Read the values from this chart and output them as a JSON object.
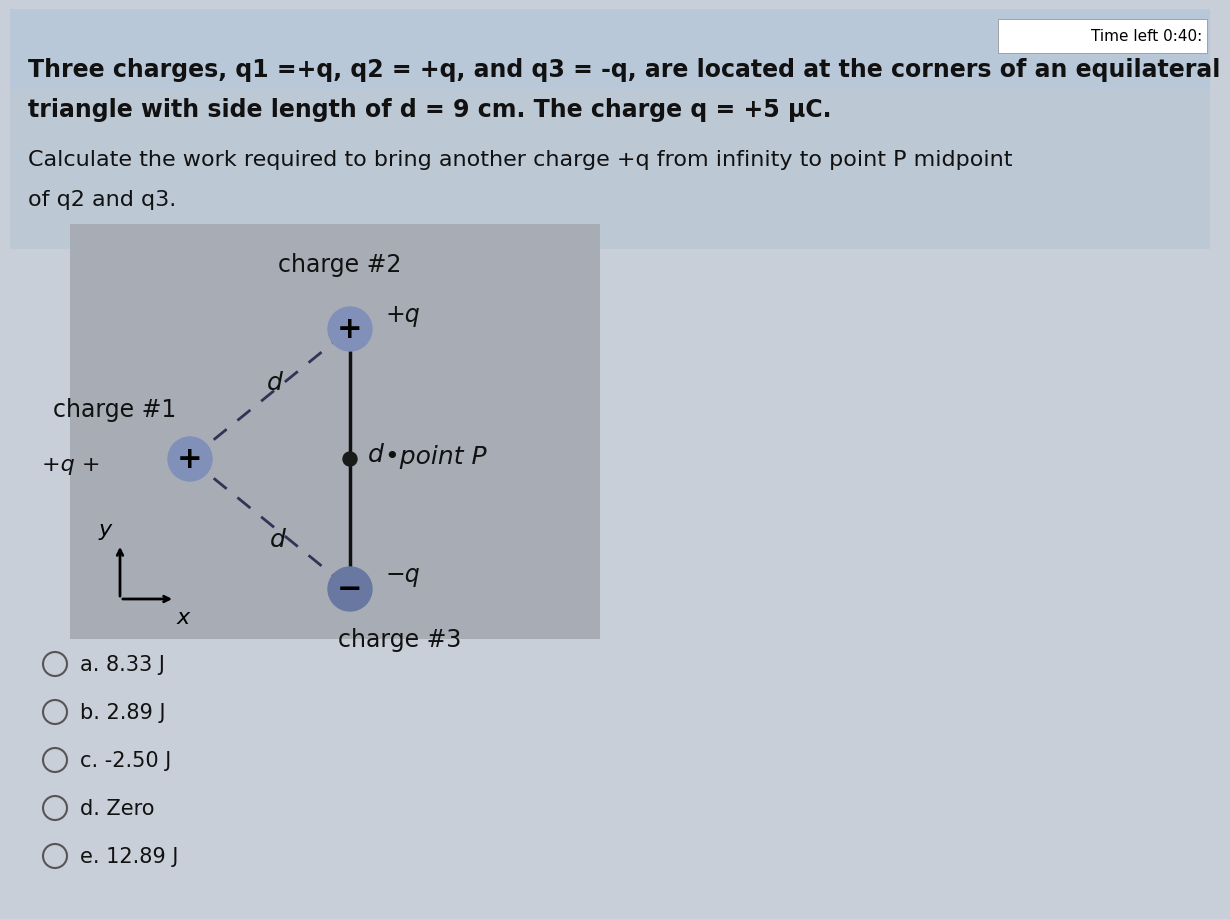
{
  "bg_color_top": "#c8d8e8",
  "bg_color_main": "#c8cfd8",
  "timer_text": "Time left 0:40:",
  "title_line1": "Three charges, q1 =+q, q2 = +q, and q3 = -q, are located at the corners of an equilateral",
  "title_line2": "triangle with side length of d = 9 cm. The charge q = +5 μC.",
  "q_line1": "Calculate the work required to bring another charge +q from infinity to point P midpoint",
  "q_line2": "of q2 and q3.",
  "diagram_bg": "#a8adb5",
  "charge2_label": "charge #2",
  "charge1_label": "charge #1",
  "charge3_label": "charge #3",
  "choices": [
    "a. 8.33 J",
    "b. 2.89 J",
    "c. -2.50 J",
    "d. Zero",
    "e. 12.89 J"
  ],
  "circle_plus_color": "#8090b8",
  "circle_minus_color": "#6878a0",
  "dot_color": "#1a1a1a",
  "text_color": "#111111",
  "dashed_color": "#333355",
  "line_color": "#111111"
}
